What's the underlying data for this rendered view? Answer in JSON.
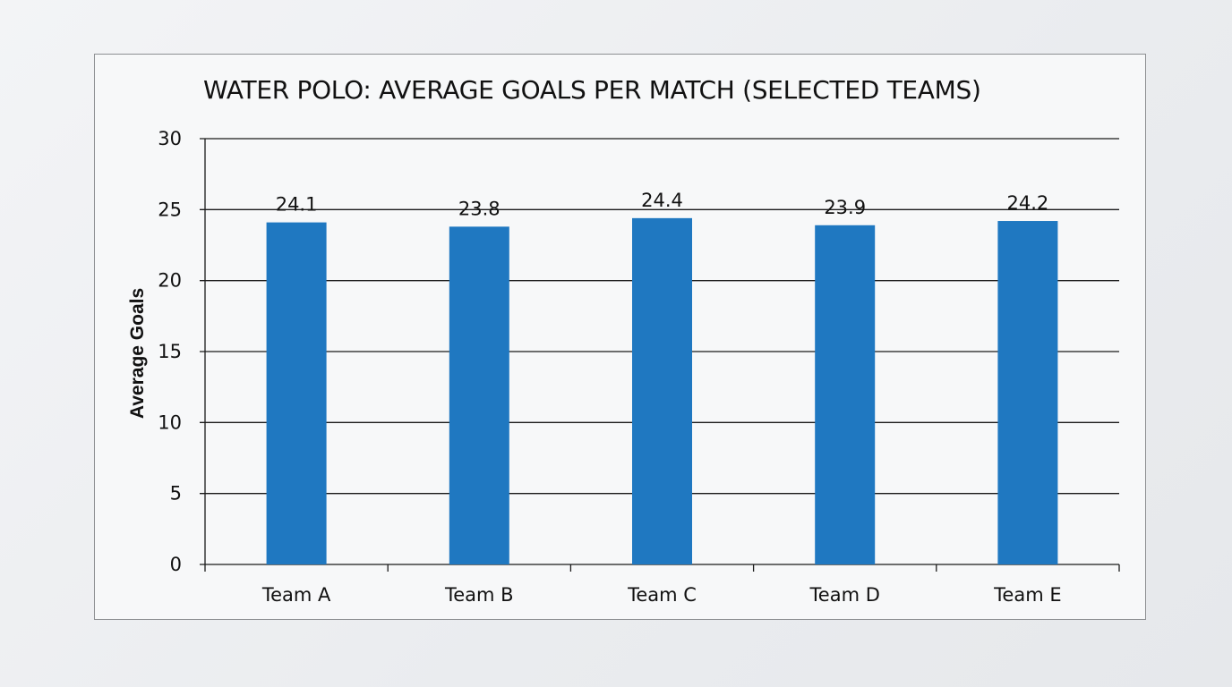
{
  "chart_data": {
    "type": "bar",
    "title": "WATER POLO: AVERAGE GOALS PER MATCH (SELECTED TEAMS)",
    "xlabel": "",
    "ylabel": "Average Goals",
    "categories": [
      "Team A",
      "Team B",
      "Team C",
      "Team D",
      "Team E"
    ],
    "values": [
      24.1,
      23.8,
      24.4,
      23.9,
      24.2
    ],
    "data_labels": [
      "24.1",
      "23.8",
      "24.4",
      "23.9",
      "24.2"
    ],
    "ylim": [
      0,
      30
    ],
    "yticks": [
      0,
      5,
      10,
      15,
      20,
      25,
      30
    ],
    "grid": true,
    "legend": "none",
    "bar_color": "#1f78c1"
  }
}
